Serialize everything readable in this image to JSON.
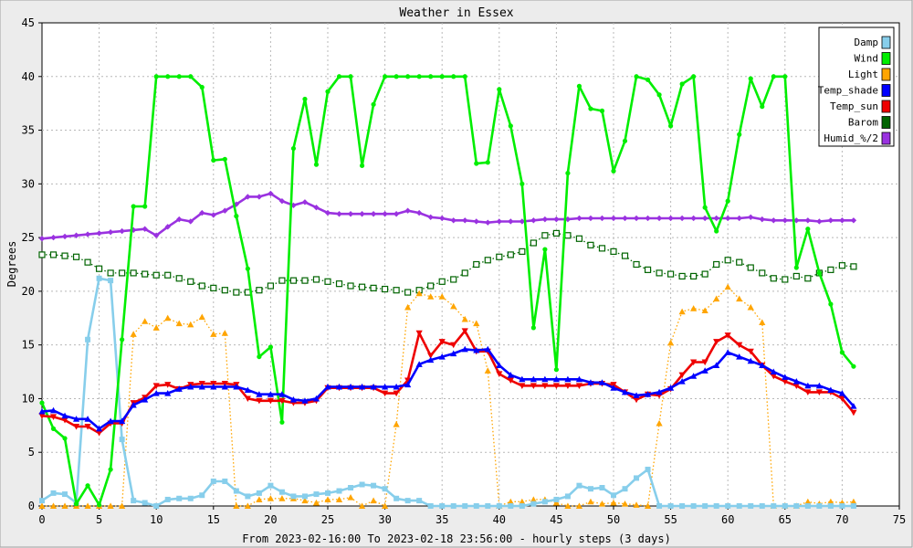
{
  "chart_data": {
    "type": "line",
    "title": "Weather in Essex",
    "xlabel": "From 2023-02-16:00 To 2023-02-18 23:56:00 - hourly steps (3 days)",
    "ylabel": "Degrees",
    "xlim": [
      0,
      75
    ],
    "ylim": [
      0,
      45
    ],
    "x_ticks": [
      0,
      5,
      10,
      15,
      20,
      25,
      30,
      35,
      40,
      45,
      50,
      55,
      60,
      65,
      70,
      75
    ],
    "y_ticks": [
      0,
      5,
      10,
      15,
      20,
      25,
      30,
      35,
      40,
      45
    ],
    "grid": true,
    "legend_position": "top-right",
    "series": [
      {
        "name": "Damp",
        "color": "#87ceeb",
        "marker": "square",
        "line": "solid",
        "values": [
          0.5,
          1.2,
          1.1,
          0.3,
          15.5,
          21.2,
          21.0,
          6.2,
          0.5,
          0.3,
          0.0,
          0.6,
          0.7,
          0.7,
          1.0,
          2.3,
          2.3,
          1.4,
          0.9,
          1.2,
          1.9,
          1.3,
          0.9,
          0.9,
          1.1,
          1.2,
          1.4,
          1.7,
          2.0,
          1.9,
          1.6,
          0.7,
          0.5,
          0.5,
          0,
          0,
          0,
          0,
          0,
          0,
          0,
          0,
          0,
          0.2,
          0.4,
          0.6,
          0.9,
          1.9,
          1.6,
          1.7,
          1.0,
          1.6,
          2.6,
          3.4,
          0,
          0,
          0,
          0,
          0,
          0,
          0,
          0,
          0,
          0,
          0,
          0,
          0,
          0,
          0,
          0,
          0,
          0
        ]
      },
      {
        "name": "Wind",
        "color": "#00ee00",
        "marker": "circle",
        "line": "solid",
        "values": [
          9.6,
          7.2,
          6.3,
          0.2,
          1.9,
          0.1,
          3.4,
          15.5,
          27.9,
          27.9,
          40.0,
          40.0,
          40.0,
          40.0,
          39.0,
          32.2,
          32.3,
          27.0,
          22.1,
          13.9,
          14.8,
          7.8,
          33.3,
          37.9,
          31.8,
          38.6,
          40.0,
          40.0,
          31.7,
          37.4,
          40.0,
          40.0,
          40.0,
          40.0,
          40.0,
          40.0,
          40.0,
          40.0,
          31.9,
          32.0,
          38.8,
          35.4,
          30.0,
          16.6,
          23.9,
          12.7,
          31.0,
          39.1,
          37.0,
          36.8,
          31.2,
          34.0,
          40.0,
          39.7,
          38.3,
          35.4,
          39.3,
          40.0,
          27.8,
          25.6,
          28.4,
          34.6,
          39.8,
          37.2,
          40.0,
          40.0,
          22.2,
          25.8,
          21.7,
          18.8,
          14.3,
          13.0
        ]
      },
      {
        "name": "Light",
        "color": "#ffa500",
        "marker": "triangle",
        "line": "dotted",
        "values": [
          0,
          0,
          0,
          0,
          0,
          0,
          0,
          0,
          16.0,
          17.2,
          16.6,
          17.5,
          17.0,
          16.9,
          17.6,
          16.0,
          16.1,
          0,
          0,
          0.6,
          0.7,
          0.7,
          0.7,
          0.5,
          0.3,
          0.6,
          0.6,
          0.8,
          0,
          0.5,
          0,
          7.6,
          18.5,
          19.8,
          19.5,
          19.5,
          18.6,
          17.4,
          17.0,
          12.6,
          0,
          0.4,
          0.4,
          0.6,
          0.6,
          0.3,
          0,
          0,
          0.4,
          0.2,
          0.3,
          0.2,
          0.1,
          0,
          7.7,
          15.2,
          18.1,
          18.4,
          18.2,
          19.3,
          20.4,
          19.3,
          18.5,
          17.1,
          0,
          0,
          0,
          0.4,
          0.2,
          0.4,
          0.3,
          0.4
        ]
      },
      {
        "name": "Temp_shade",
        "color": "#0000ff",
        "marker": "triangle",
        "line": "solid",
        "values": [
          8.8,
          8.9,
          8.4,
          8.1,
          8.1,
          7.2,
          7.9,
          7.9,
          9.4,
          9.9,
          10.5,
          10.5,
          10.9,
          11.1,
          11.1,
          11.1,
          11.1,
          11.1,
          10.8,
          10.4,
          10.4,
          10.4,
          9.9,
          9.8,
          10.0,
          11.1,
          11.1,
          11.1,
          11.1,
          11.1,
          11.1,
          11.1,
          11.3,
          13.2,
          13.6,
          13.9,
          14.2,
          14.6,
          14.5,
          14.6,
          13.1,
          12.2,
          11.8,
          11.8,
          11.8,
          11.8,
          11.8,
          11.8,
          11.5,
          11.5,
          11.0,
          10.6,
          10.3,
          10.4,
          10.6,
          11.0,
          11.6,
          12.1,
          12.6,
          13.1,
          14.3,
          13.9,
          13.5,
          13.1,
          12.5,
          12.0,
          11.6,
          11.2,
          11.2,
          10.8,
          10.5,
          9.3
        ]
      },
      {
        "name": "Temp_sun",
        "color": "#ee0000",
        "marker": "triangle-down",
        "line": "solid",
        "values": [
          8.4,
          8.3,
          8.0,
          7.4,
          7.4,
          6.8,
          7.7,
          7.7,
          9.6,
          10.1,
          11.2,
          11.3,
          10.9,
          11.3,
          11.4,
          11.4,
          11.4,
          11.3,
          10.0,
          9.8,
          9.8,
          9.8,
          9.6,
          9.6,
          9.8,
          11.0,
          11.0,
          11.0,
          11.0,
          11.0,
          10.5,
          10.5,
          11.7,
          16.1,
          14.0,
          15.3,
          15.0,
          16.3,
          14.4,
          14.4,
          12.3,
          11.7,
          11.2,
          11.2,
          11.2,
          11.2,
          11.2,
          11.2,
          11.4,
          11.4,
          11.3,
          10.6,
          9.9,
          10.4,
          10.3,
          10.9,
          12.2,
          13.4,
          13.4,
          15.3,
          15.9,
          15.0,
          14.4,
          13.1,
          12.1,
          11.6,
          11.2,
          10.6,
          10.6,
          10.6,
          10.0,
          8.7
        ]
      },
      {
        "name": "Barom",
        "color": "#006400",
        "marker": "open-square",
        "line": "dotted",
        "values": [
          23.4,
          23.4,
          23.3,
          23.2,
          22.7,
          22.1,
          21.7,
          21.7,
          21.7,
          21.6,
          21.5,
          21.5,
          21.2,
          20.9,
          20.5,
          20.3,
          20.1,
          19.9,
          19.9,
          20.1,
          20.5,
          21.0,
          21.0,
          21.0,
          21.1,
          20.9,
          20.7,
          20.5,
          20.4,
          20.3,
          20.2,
          20.1,
          19.9,
          20.1,
          20.5,
          20.9,
          21.1,
          21.7,
          22.5,
          22.9,
          23.2,
          23.4,
          23.7,
          24.5,
          25.2,
          25.4,
          25.2,
          24.9,
          24.3,
          24.0,
          23.7,
          23.3,
          22.5,
          22.0,
          21.7,
          21.6,
          21.4,
          21.4,
          21.6,
          22.5,
          22.9,
          22.7,
          22.2,
          21.7,
          21.2,
          21.1,
          21.4,
          21.2,
          21.7,
          22.0,
          22.4,
          22.3
        ]
      },
      {
        "name": "Humid_%/2",
        "color": "#9a32e0",
        "marker": "diamond",
        "line": "solid",
        "values": [
          24.9,
          25.0,
          25.1,
          25.2,
          25.3,
          25.4,
          25.5,
          25.6,
          25.7,
          25.8,
          25.2,
          26.0,
          26.7,
          26.5,
          27.3,
          27.1,
          27.5,
          28.1,
          28.8,
          28.8,
          29.1,
          28.4,
          28.0,
          28.3,
          27.8,
          27.3,
          27.2,
          27.2,
          27.2,
          27.2,
          27.2,
          27.2,
          27.5,
          27.3,
          26.9,
          26.8,
          26.6,
          26.6,
          26.5,
          26.4,
          26.5,
          26.5,
          26.5,
          26.6,
          26.7,
          26.7,
          26.7,
          26.8,
          26.8,
          26.8,
          26.8,
          26.8,
          26.8,
          26.8,
          26.8,
          26.8,
          26.8,
          26.8,
          26.8,
          26.8,
          26.8,
          26.8,
          26.9,
          26.7,
          26.6,
          26.6,
          26.6,
          26.6,
          26.5,
          26.6,
          26.6,
          26.6
        ]
      }
    ]
  }
}
